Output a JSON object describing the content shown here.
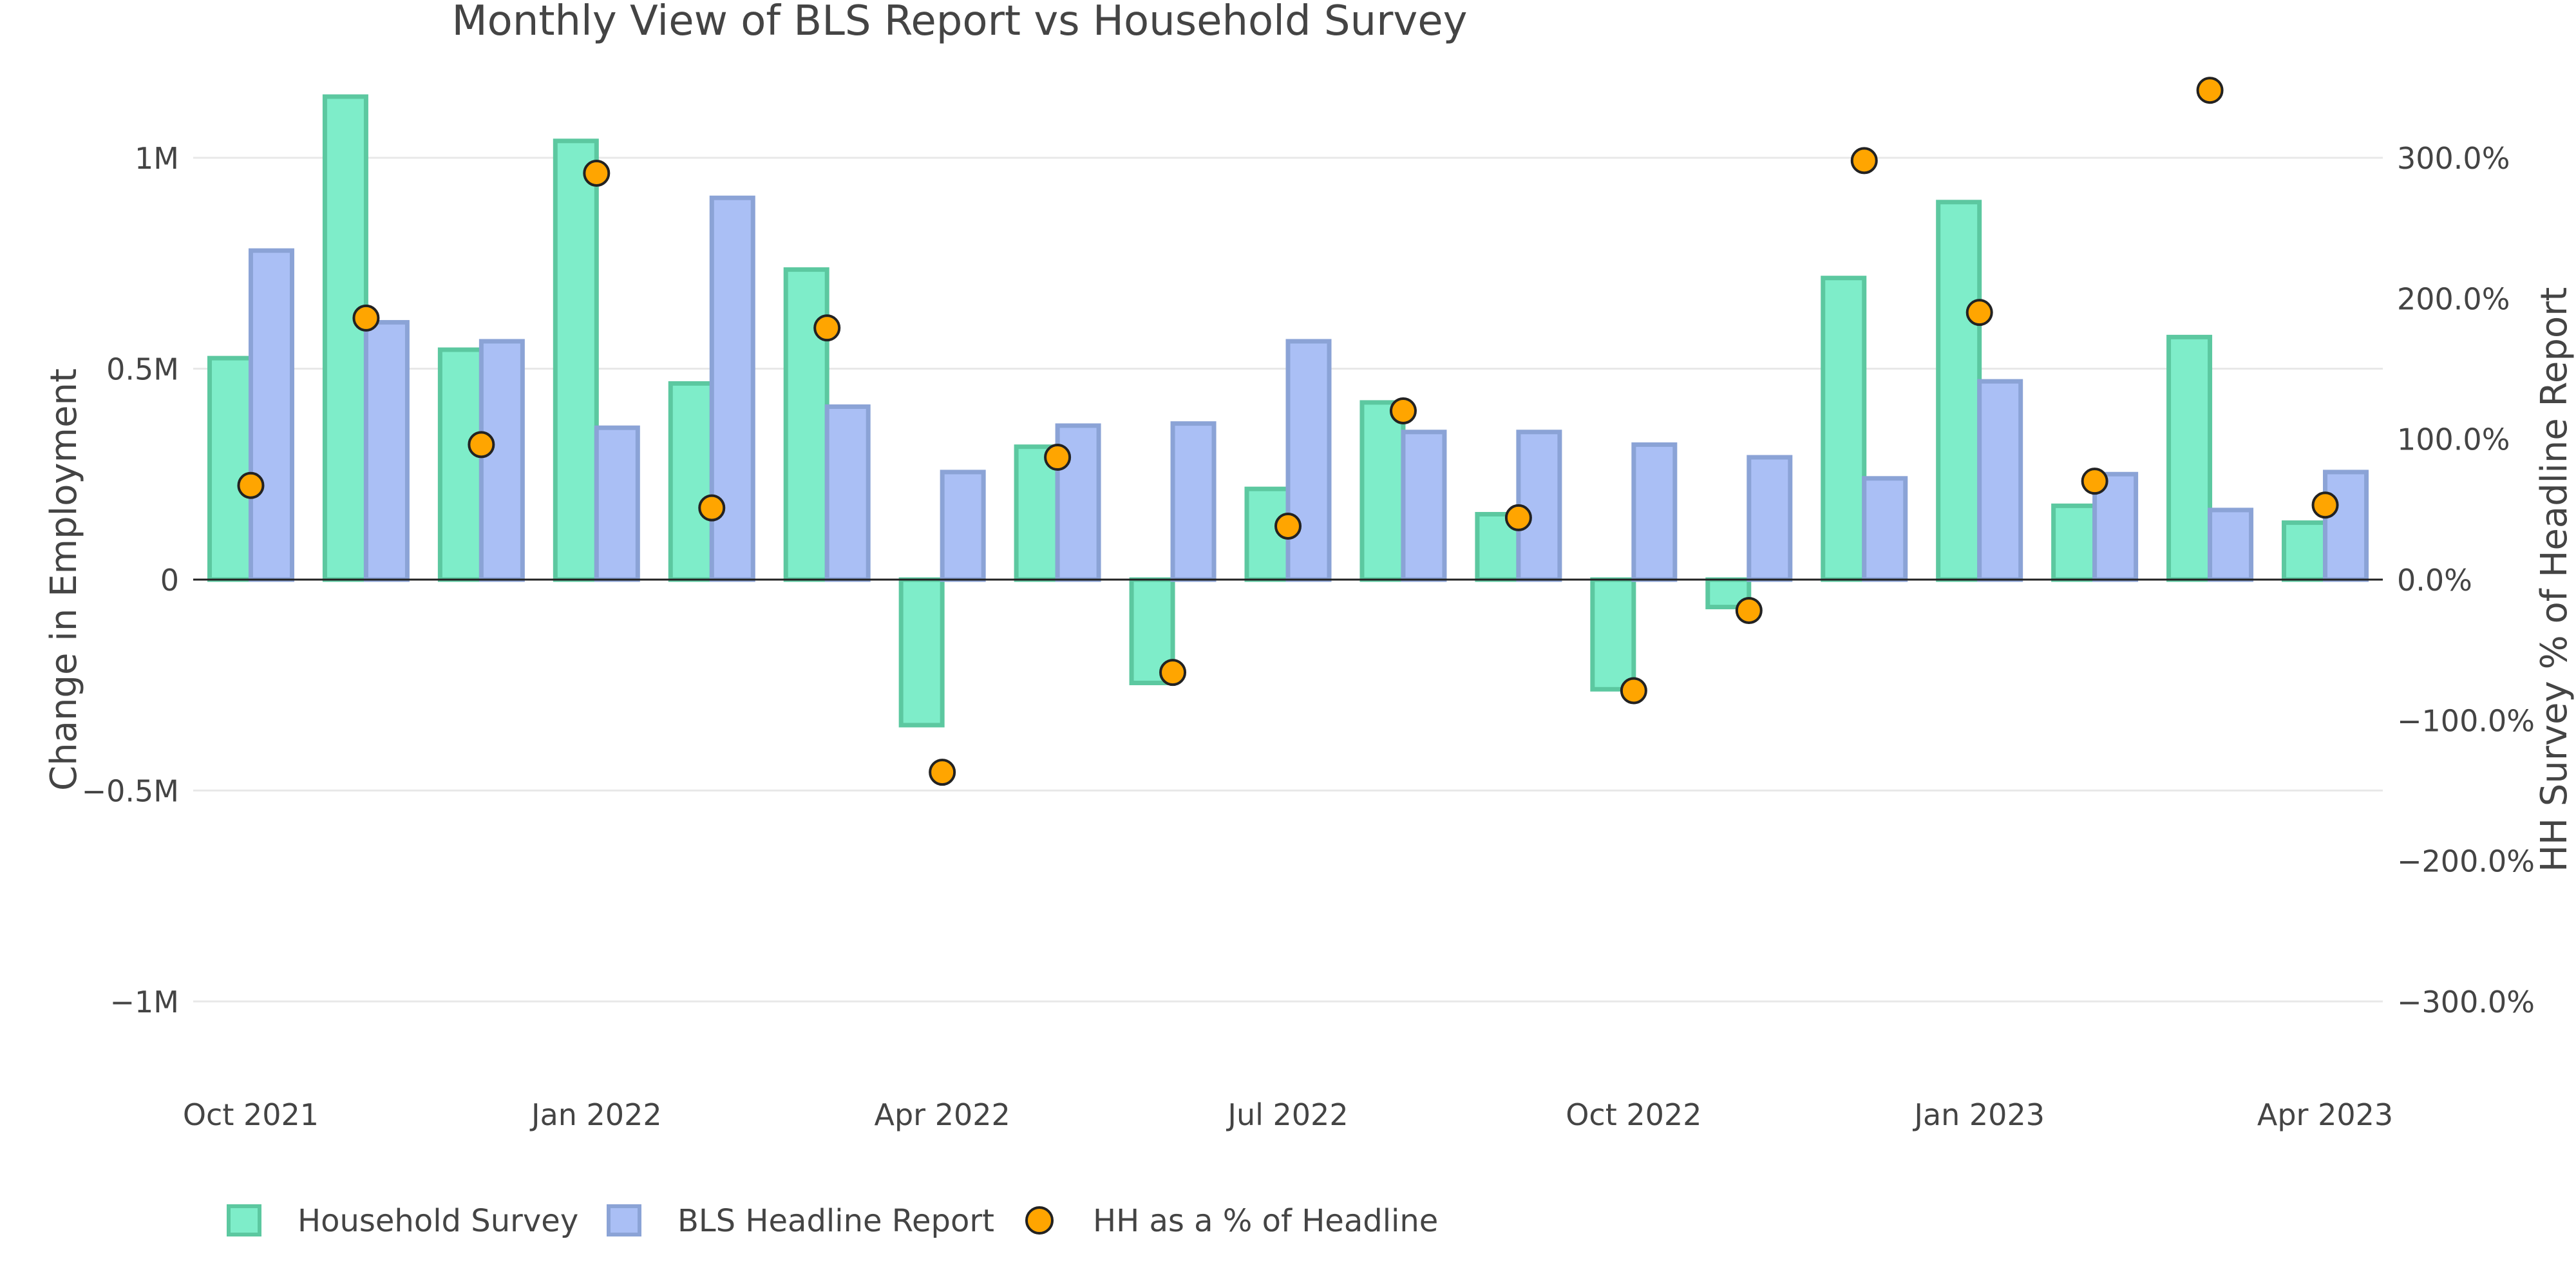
{
  "chart_data": {
    "type": "bar",
    "title": "Monthly View of BLS Report vs Household Survey",
    "ylabel": "Change in Employment",
    "y2label": "HH Survey % of Headline Report",
    "x": [
      "2021-10",
      "2021-11",
      "2021-12",
      "2022-01",
      "2022-02",
      "2022-03",
      "2022-04",
      "2022-05",
      "2022-06",
      "2022-07",
      "2022-08",
      "2022-09",
      "2022-10",
      "2022-11",
      "2022-12",
      "2023-01",
      "2023-02",
      "2023-03",
      "2023-04"
    ],
    "x_ticks": [
      {
        "date": "2021-10",
        "label": "Oct 2021"
      },
      {
        "date": "2022-01",
        "label": "Jan 2022"
      },
      {
        "date": "2022-04",
        "label": "Apr 2022"
      },
      {
        "date": "2022-07",
        "label": "Jul 2022"
      },
      {
        "date": "2022-10",
        "label": "Oct 2022"
      },
      {
        "date": "2023-01",
        "label": "Jan 2023"
      },
      {
        "date": "2023-04",
        "label": "Apr 2023"
      }
    ],
    "ylim": [
      -1200000,
      1300000
    ],
    "y_ticks": [
      {
        "value": 1000000,
        "label": "1M"
      },
      {
        "value": 500000,
        "label": "0.5M"
      },
      {
        "value": 0,
        "label": "0"
      },
      {
        "value": -500000,
        "label": "−0.5M"
      },
      {
        "value": -1000000,
        "label": "−1M"
      }
    ],
    "y2lim": [
      -360,
      390
    ],
    "y2_ticks": [
      {
        "value": 300,
        "label": "300.0%"
      },
      {
        "value": 200,
        "label": "200.0%"
      },
      {
        "value": 100,
        "label": "100.0%"
      },
      {
        "value": 0,
        "label": "0.0%"
      },
      {
        "value": -100,
        "label": "−100.0%"
      },
      {
        "value": -200,
        "label": "−200.0%"
      },
      {
        "value": -300,
        "label": "−300.0%"
      }
    ],
    "series": [
      {
        "name": "Household Survey",
        "kind": "bar",
        "color": "#7eedc9",
        "border": "#5cc8a0",
        "values": [
          525000,
          1145000,
          545000,
          1040000,
          465000,
          735000,
          -345000,
          315000,
          -245000,
          215000,
          420000,
          155000,
          -260000,
          -65000,
          715000,
          895000,
          175000,
          575000,
          135000
        ]
      },
      {
        "name": "BLS Headline Report",
        "kind": "bar",
        "color": "#aabff5",
        "border": "#8ba3d6",
        "values": [
          780000,
          610000,
          565000,
          360000,
          905000,
          410000,
          255000,
          365000,
          370000,
          565000,
          350000,
          350000,
          320000,
          290000,
          240000,
          470000,
          250000,
          165000,
          255000
        ]
      },
      {
        "name": "HH as a % of Headline",
        "kind": "scatter",
        "axis": "y2",
        "color": "#ffa500",
        "border": "#222222",
        "values": [
          67,
          186,
          96,
          289,
          51,
          179,
          -137,
          87,
          -66,
          38,
          120,
          44,
          -79,
          -22,
          298,
          190,
          70,
          348,
          53
        ]
      }
    ],
    "grid": true,
    "legend_position": "bottom-left"
  }
}
